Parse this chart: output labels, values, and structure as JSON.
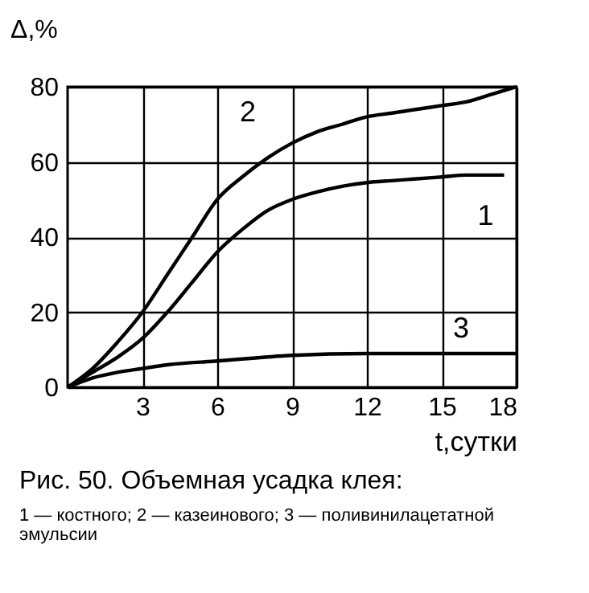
{
  "chart_data": {
    "type": "line",
    "xlabel": "t,сутки",
    "ylabel": "Δ,%",
    "xlim": [
      0,
      18
    ],
    "ylim": [
      0,
      80
    ],
    "xticks": [
      3,
      6,
      9,
      12,
      15,
      18
    ],
    "yticks": [
      0,
      20,
      40,
      60,
      80
    ],
    "grid": true,
    "legend": false,
    "marker": "none",
    "line_style": "solid",
    "series": [
      {
        "color": "#000000",
        "x": [
          0,
          1,
          2,
          3,
          4,
          5,
          6,
          7,
          8,
          9,
          10,
          11,
          12,
          13,
          14,
          15,
          16,
          17.5
        ],
        "values": [
          0,
          4,
          8,
          13,
          20,
          28,
          36,
          42,
          47,
          50,
          52,
          53.5,
          54.5,
          55,
          55.5,
          56,
          56.5,
          56.5
        ]
      },
      {
        "color": "#000000",
        "x": [
          0,
          1,
          2,
          3,
          4,
          5,
          6,
          7,
          8,
          9,
          10,
          11,
          12,
          13,
          14,
          15,
          16,
          17,
          18
        ],
        "values": [
          0,
          5,
          12,
          20,
          30,
          40,
          50,
          56,
          61,
          65,
          68,
          70,
          72,
          73,
          74,
          75,
          76,
          78,
          80
        ]
      },
      {
        "color": "#000000",
        "x": [
          0,
          1,
          2,
          3,
          4,
          6,
          9,
          12,
          15,
          18
        ],
        "values": [
          0,
          2.5,
          4,
          5,
          6,
          7,
          8.5,
          9,
          9,
          9
        ]
      }
    ],
    "annotations": [
      {
        "text": "1",
        "x": 16.5,
        "y": 56.5
      },
      {
        "text": "2",
        "x": 8,
        "y": 61
      },
      {
        "text": "3",
        "x": 15,
        "y": 9
      },
      "Рис. 50. Объемная усадка клея:",
      "1 — костного; 2 — казеинового; 3 — поливинилацетатной эмульсии"
    ]
  }
}
